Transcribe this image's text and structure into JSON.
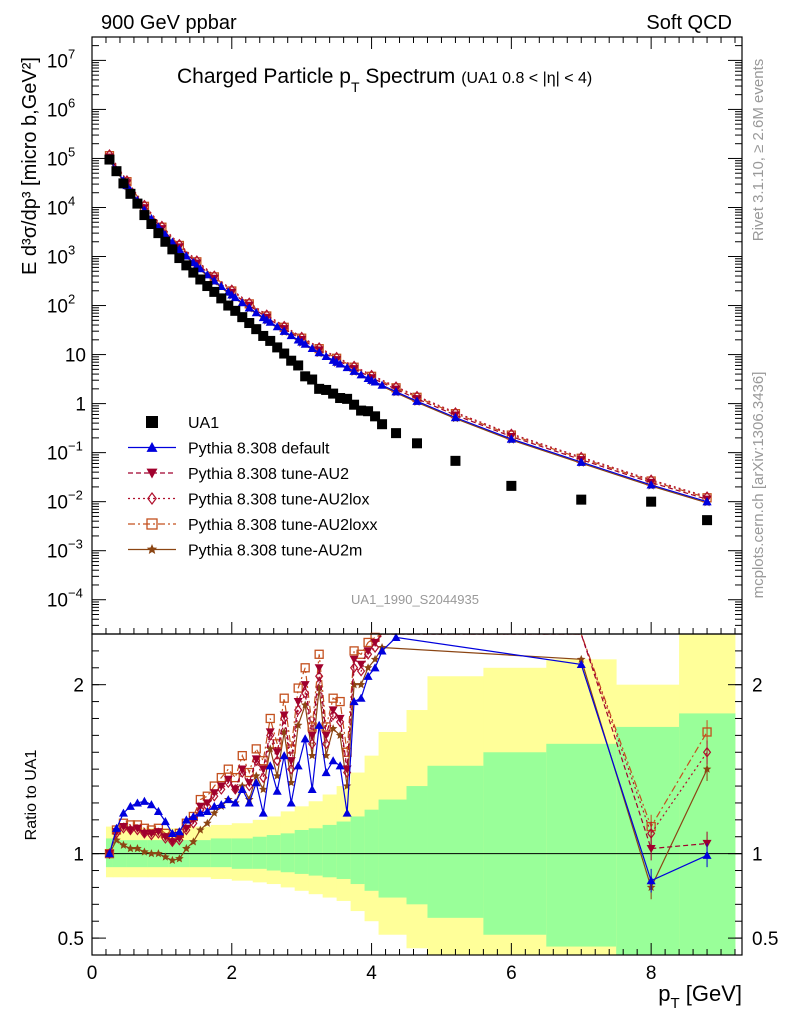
{
  "header": {
    "left": "900 GeV ppbar",
    "right": "Soft QCD"
  },
  "side_labels": {
    "rivet": "Rivet 3.1.10, ≥ 2.6M events",
    "mcplots": "mcplots.cern.ch [arXiv:1306.3436]"
  },
  "chart_data": [
    {
      "type": "scatter",
      "title_main": "Charged Particle p",
      "title_sub": "T",
      "title_tail": " Spectrum",
      "title_cut": "(UA1 0.8 < |η| < 4)",
      "watermark": "UA1_1990_S2044935",
      "ylabel": "E d³σ/dp³ [micro b,GeV²]",
      "yscale": "log",
      "ylim": [
        2e-05,
        30000000
      ],
      "xlim": [
        0,
        9.3
      ],
      "y_ticks": [
        {
          "v": 10000000,
          "m": "10",
          "e": "7"
        },
        {
          "v": 1000000,
          "m": "10",
          "e": "6"
        },
        {
          "v": 100000,
          "m": "10",
          "e": "5"
        },
        {
          "v": 10000,
          "m": "10",
          "e": "4"
        },
        {
          "v": 1000,
          "m": "10",
          "e": "3"
        },
        {
          "v": 100,
          "m": "10",
          "e": "2"
        },
        {
          "v": 10,
          "m": "10",
          "e": ""
        },
        {
          "v": 1,
          "m": "1",
          "e": ""
        },
        {
          "v": 0.1,
          "m": "10",
          "e": "−1"
        },
        {
          "v": 0.01,
          "m": "10",
          "e": "−2"
        },
        {
          "v": 0.001,
          "m": "10",
          "e": "−3"
        },
        {
          "v": 0.0001,
          "m": "10",
          "e": "−4"
        }
      ],
      "legend_position": "lower-left",
      "legend": [
        {
          "label": "UA1",
          "color": "#000000",
          "marker": "square",
          "dash": ""
        },
        {
          "label": "Pythia 8.308 default",
          "color": "#0000dd",
          "marker": "triangle",
          "dash": ""
        },
        {
          "label": "Pythia 8.308 tune-AU2",
          "color": "#a0002d",
          "marker": "triangle-down",
          "dash": "5,3"
        },
        {
          "label": "Pythia 8.308 tune-AU2lox",
          "color": "#b0102d",
          "marker": "diamond",
          "dash": "2,3"
        },
        {
          "label": "Pythia 8.308 tune-AU2loxx",
          "color": "#c4501e",
          "marker": "square-open",
          "dash": "7,3,2,3"
        },
        {
          "label": "Pythia 8.308 tune-AU2m",
          "color": "#8b4513",
          "marker": "star",
          "dash": ""
        }
      ],
      "data_points": {
        "x": [
          0.25,
          0.35,
          0.45,
          0.55,
          0.65,
          0.75,
          0.85,
          0.95,
          1.05,
          1.15,
          1.25,
          1.35,
          1.45,
          1.55,
          1.65,
          1.75,
          1.85,
          1.95,
          2.05,
          2.15,
          2.25,
          2.35,
          2.45,
          2.55,
          2.65,
          2.75,
          2.85,
          2.95,
          3.05,
          3.15,
          3.25,
          3.35,
          3.45,
          3.55,
          3.65,
          3.75,
          3.85,
          3.95,
          4.05,
          4.15,
          4.35,
          4.65,
          5.2,
          6.0,
          7.0,
          8.0,
          8.8
        ],
        "y": [
          95000,
          55000,
          31000,
          19000,
          12000,
          7000,
          4600,
          3000,
          2000,
          1400,
          930,
          660,
          470,
          340,
          250,
          190,
          140,
          100,
          78,
          58,
          44,
          33,
          24,
          19,
          14,
          10.5,
          7.5,
          6.0,
          3.6,
          3.1,
          2.0,
          1.9,
          1.6,
          1.3,
          1.25,
          0.95,
          0.72,
          0.7,
          0.55,
          0.38,
          0.25,
          0.155,
          0.068,
          0.021,
          0.011,
          0.01,
          0.0042
        ]
      },
      "mc_x": [
        0.25,
        0.5,
        0.75,
        1.0,
        1.25,
        1.5,
        1.75,
        2.0,
        2.25,
        2.5,
        2.75,
        3.0,
        3.25,
        3.5,
        3.75,
        4.0,
        4.35,
        4.65,
        5.2,
        6.0,
        7.0,
        8.0,
        8.8
      ],
      "mc_y": [
        95000,
        28000,
        8800,
        3300,
        1400,
        650,
        320,
        165,
        90,
        51,
        30,
        18,
        11,
        7.0,
        4.6,
        3.0,
        1.75,
        1.12,
        0.52,
        0.19,
        0.064,
        0.022,
        0.01
      ],
      "mc_factors": [
        0.88,
        1.0,
        1.12,
        1.27,
        1.2,
        0.95
      ]
    },
    {
      "type": "line",
      "ylabel": "Ratio to UA1",
      "xlabel": "p",
      "xlabel_sub": "T",
      "xlabel_unit": " [GeV]",
      "ylim": [
        0.4,
        2.3
      ],
      "xlim": [
        0,
        9.3
      ],
      "y_ticks": [
        {
          "v": 0.5,
          "label": "0.5"
        },
        {
          "v": 1,
          "label": "1"
        },
        {
          "v": 2,
          "label": "2"
        }
      ],
      "x_ticks": [
        {
          "v": 0,
          "label": "0"
        },
        {
          "v": 2,
          "label": "2"
        },
        {
          "v": 4,
          "label": "4"
        },
        {
          "v": 6,
          "label": "6"
        },
        {
          "v": 8,
          "label": "8"
        }
      ],
      "band_colors": {
        "yellow": "#ffff99",
        "green": "#99ff99"
      },
      "bands": [
        {
          "x0": 0.2,
          "x1": 0.3,
          "y0": 0.86,
          "y1": 1.16,
          "g0": 0.92,
          "g1": 1.09
        },
        {
          "x0": 0.3,
          "x1": 0.5,
          "y0": 0.86,
          "y1": 1.15,
          "g0": 0.92,
          "g1": 1.08
        },
        {
          "x0": 0.5,
          "x1": 0.8,
          "y0": 0.86,
          "y1": 1.15,
          "g0": 0.92,
          "g1": 1.08
        },
        {
          "x0": 0.8,
          "x1": 1.1,
          "y0": 0.86,
          "y1": 1.15,
          "g0": 0.92,
          "g1": 1.08
        },
        {
          "x0": 1.1,
          "x1": 1.4,
          "y0": 0.86,
          "y1": 1.15,
          "g0": 0.92,
          "g1": 1.08
        },
        {
          "x0": 1.4,
          "x1": 1.7,
          "y0": 0.86,
          "y1": 1.16,
          "g0": 0.92,
          "g1": 1.08
        },
        {
          "x0": 1.7,
          "x1": 2.0,
          "y0": 0.85,
          "y1": 1.17,
          "g0": 0.92,
          "g1": 1.09
        },
        {
          "x0": 2.0,
          "x1": 2.3,
          "y0": 0.84,
          "y1": 1.18,
          "g0": 0.91,
          "g1": 1.09
        },
        {
          "x0": 2.3,
          "x1": 2.5,
          "y0": 0.83,
          "y1": 1.2,
          "g0": 0.91,
          "g1": 1.1
        },
        {
          "x0": 2.5,
          "x1": 2.7,
          "y0": 0.82,
          "y1": 1.22,
          "g0": 0.9,
          "g1": 1.11
        },
        {
          "x0": 2.7,
          "x1": 2.9,
          "y0": 0.8,
          "y1": 1.25,
          "g0": 0.89,
          "g1": 1.12
        },
        {
          "x0": 2.9,
          "x1": 3.1,
          "y0": 0.78,
          "y1": 1.28,
          "g0": 0.88,
          "g1": 1.14
        },
        {
          "x0": 3.1,
          "x1": 3.3,
          "y0": 0.76,
          "y1": 1.31,
          "g0": 0.87,
          "g1": 1.15
        },
        {
          "x0": 3.3,
          "x1": 3.5,
          "y0": 0.74,
          "y1": 1.35,
          "g0": 0.86,
          "g1": 1.17
        },
        {
          "x0": 3.5,
          "x1": 3.7,
          "y0": 0.72,
          "y1": 1.4,
          "g0": 0.85,
          "g1": 1.19
        },
        {
          "x0": 3.7,
          "x1": 3.9,
          "y0": 0.66,
          "y1": 1.48,
          "g0": 0.82,
          "g1": 1.22
        },
        {
          "x0": 3.9,
          "x1": 4.1,
          "y0": 0.6,
          "y1": 1.58,
          "g0": 0.78,
          "g1": 1.26
        },
        {
          "x0": 4.1,
          "x1": 4.5,
          "y0": 0.52,
          "y1": 1.72,
          "g0": 0.74,
          "g1": 1.32
        },
        {
          "x0": 4.5,
          "x1": 4.8,
          "y0": 0.44,
          "y1": 1.85,
          "g0": 0.7,
          "g1": 1.4
        },
        {
          "x0": 4.8,
          "x1": 5.6,
          "y0": 0.36,
          "y1": 2.05,
          "g0": 0.62,
          "g1": 1.52
        },
        {
          "x0": 5.6,
          "x1": 6.5,
          "y0": 0.36,
          "y1": 2.1,
          "g0": 0.52,
          "g1": 1.6
        },
        {
          "x0": 6.5,
          "x1": 7.5,
          "y0": 0.36,
          "y1": 2.15,
          "g0": 0.45,
          "g1": 1.65
        },
        {
          "x0": 7.5,
          "x1": 8.4,
          "y0": 0.36,
          "y1": 2.0,
          "g0": 0.36,
          "g1": 1.75
        },
        {
          "x0": 8.4,
          "x1": 9.2,
          "y0": 0.36,
          "y1": 2.3,
          "g0": 0.36,
          "g1": 1.83
        }
      ],
      "series": [
        {
          "name": "Pythia 8.308 default",
          "color": "#0000dd",
          "marker": "triangle",
          "dash": "",
          "x": [
            0.25,
            0.35,
            0.45,
            0.55,
            0.65,
            0.75,
            0.85,
            0.95,
            1.05,
            1.15,
            1.25,
            1.35,
            1.45,
            1.55,
            1.65,
            1.75,
            1.85,
            1.95,
            2.05,
            2.15,
            2.25,
            2.35,
            2.45,
            2.55,
            2.65,
            2.75,
            2.85,
            2.95,
            3.05,
            3.15,
            3.25,
            3.35,
            3.45,
            3.55,
            3.65,
            3.75,
            3.85,
            3.95,
            4.05,
            4.15,
            4.35,
            7.0,
            8.0,
            8.8
          ],
          "y": [
            1.0,
            1.15,
            1.24,
            1.28,
            1.3,
            1.31,
            1.29,
            1.25,
            1.19,
            1.12,
            1.13,
            1.2,
            1.22,
            1.24,
            1.25,
            1.28,
            1.29,
            1.32,
            1.3,
            1.38,
            1.3,
            1.42,
            1.24,
            1.52,
            1.37,
            1.58,
            1.3,
            1.52,
            1.68,
            1.38,
            1.76,
            1.48,
            1.55,
            1.52,
            1.24,
            1.9,
            1.92,
            2.05,
            2.1,
            2.2,
            2.28,
            2.12,
            0.84,
            0.99
          ]
        },
        {
          "name": "Pythia 8.308 tune-AU2",
          "color": "#a0002d",
          "marker": "triangle-down",
          "dash": "5,3",
          "x": [
            0.25,
            0.35,
            0.45,
            0.55,
            0.65,
            0.75,
            0.85,
            0.95,
            1.05,
            1.15,
            1.25,
            1.35,
            1.45,
            1.55,
            1.65,
            1.75,
            1.85,
            1.95,
            2.05,
            2.15,
            2.25,
            2.35,
            2.45,
            2.55,
            2.65,
            2.75,
            2.85,
            2.95,
            3.05,
            3.15,
            3.25,
            3.35,
            3.45,
            3.55,
            3.65,
            3.75,
            3.85,
            3.95,
            4.05,
            4.15,
            7.0,
            8.0,
            8.8
          ],
          "y": [
            1.0,
            1.13,
            1.16,
            1.14,
            1.15,
            1.12,
            1.12,
            1.13,
            1.1,
            1.07,
            1.09,
            1.15,
            1.2,
            1.28,
            1.3,
            1.36,
            1.4,
            1.44,
            1.38,
            1.5,
            1.42,
            1.56,
            1.5,
            1.72,
            1.6,
            1.82,
            1.55,
            1.9,
            2.0,
            1.7,
            2.1,
            1.7,
            1.85,
            1.8,
            1.5,
            2.15,
            2.12,
            2.2,
            2.25,
            2.3,
            2.3,
            1.03,
            1.06
          ]
        },
        {
          "name": "Pythia 8.308 tune-AU2lox",
          "color": "#b0102d",
          "marker": "diamond",
          "dash": "2,3",
          "x": [
            0.25,
            0.35,
            0.45,
            0.55,
            0.65,
            0.75,
            0.85,
            0.95,
            1.05,
            1.15,
            1.25,
            1.35,
            1.45,
            1.55,
            1.65,
            1.75,
            1.85,
            1.95,
            2.05,
            2.15,
            2.25,
            2.35,
            2.45,
            2.55,
            2.65,
            2.75,
            2.85,
            2.95,
            3.05,
            3.15,
            3.25,
            3.35,
            3.45,
            3.55,
            3.65,
            3.75,
            3.85,
            3.95,
            4.05,
            4.15,
            7.0,
            8.0,
            8.8
          ],
          "y": [
            1.0,
            1.12,
            1.15,
            1.14,
            1.14,
            1.12,
            1.11,
            1.12,
            1.09,
            1.07,
            1.08,
            1.14,
            1.18,
            1.26,
            1.28,
            1.34,
            1.38,
            1.42,
            1.38,
            1.48,
            1.4,
            1.55,
            1.45,
            1.7,
            1.55,
            1.8,
            1.5,
            1.85,
            1.95,
            1.65,
            2.05,
            1.65,
            1.82,
            1.78,
            1.48,
            2.1,
            2.08,
            2.18,
            2.22,
            2.3,
            2.3,
            1.12,
            1.6
          ]
        },
        {
          "name": "Pythia 8.308 tune-AU2loxx",
          "color": "#c4501e",
          "marker": "square-open",
          "dash": "7,3,2,3",
          "x": [
            0.25,
            0.35,
            0.45,
            0.55,
            0.65,
            0.75,
            0.85,
            0.95,
            1.05,
            1.15,
            1.25,
            1.35,
            1.45,
            1.55,
            1.65,
            1.75,
            1.85,
            1.95,
            2.05,
            2.15,
            2.25,
            2.35,
            2.45,
            2.55,
            2.65,
            2.75,
            2.85,
            2.95,
            3.05,
            3.15,
            3.25,
            3.35,
            3.45,
            3.55,
            3.65,
            3.75,
            3.85,
            3.95,
            4.05,
            4.15,
            7.0,
            8.0,
            8.8
          ],
          "y": [
            1.0,
            1.14,
            1.18,
            1.17,
            1.17,
            1.15,
            1.14,
            1.15,
            1.12,
            1.1,
            1.12,
            1.18,
            1.22,
            1.32,
            1.34,
            1.4,
            1.45,
            1.5,
            1.45,
            1.58,
            1.48,
            1.62,
            1.55,
            1.8,
            1.65,
            1.92,
            1.62,
            1.98,
            2.1,
            1.75,
            2.18,
            1.75,
            1.92,
            1.9,
            1.6,
            2.2,
            2.18,
            2.25,
            2.28,
            2.3,
            2.3,
            1.16,
            1.72
          ]
        },
        {
          "name": "Pythia 8.308 tune-AU2m",
          "color": "#8b4513",
          "marker": "star",
          "dash": "",
          "x": [
            0.25,
            0.35,
            0.45,
            0.55,
            0.65,
            0.75,
            0.85,
            0.95,
            1.05,
            1.15,
            1.25,
            1.35,
            1.45,
            1.55,
            1.65,
            1.75,
            1.85,
            1.95,
            2.05,
            2.15,
            2.25,
            2.35,
            2.45,
            2.55,
            2.65,
            2.75,
            2.85,
            2.95,
            3.05,
            3.15,
            3.25,
            3.35,
            3.45,
            3.55,
            3.65,
            3.75,
            3.85,
            3.95,
            4.05,
            4.15,
            7.0,
            8.0,
            8.8
          ],
          "y": [
            1.0,
            1.08,
            1.05,
            1.03,
            1.03,
            1.01,
            1.0,
            1.0,
            0.98,
            0.96,
            0.97,
            1.03,
            1.07,
            1.14,
            1.18,
            1.24,
            1.28,
            1.32,
            1.3,
            1.4,
            1.32,
            1.46,
            1.38,
            1.62,
            1.46,
            1.72,
            1.42,
            1.76,
            1.88,
            1.58,
            1.98,
            1.58,
            1.74,
            1.7,
            1.4,
            2.0,
            2.0,
            2.1,
            2.15,
            2.22,
            2.15,
            0.8,
            1.5
          ]
        }
      ]
    }
  ]
}
